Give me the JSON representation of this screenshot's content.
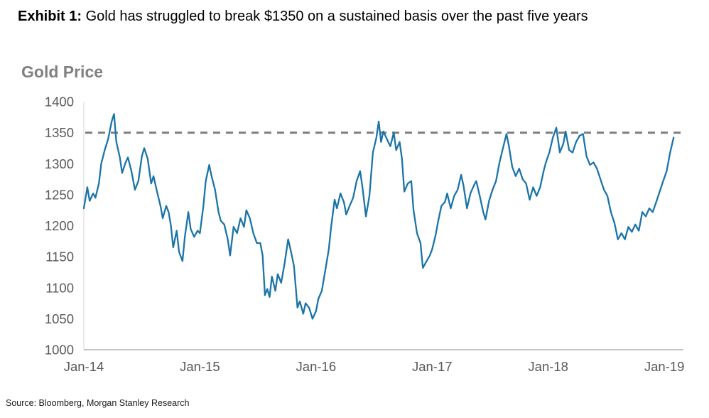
{
  "header": {
    "exhibit_label": "Exhibit 1:",
    "title": " Gold has struggled to break $1350 on a sustained basis over the past five years"
  },
  "footer": {
    "source": "Source: Bloomberg, Morgan Stanley Research"
  },
  "chart_data": {
    "type": "line",
    "title": "Gold Price",
    "xlabel": "",
    "ylabel": "",
    "xlim": [
      0,
      5.14
    ],
    "ylim": [
      1000,
      1400
    ],
    "grid": false,
    "legend": "none",
    "y_ticks": [
      1000,
      1050,
      1100,
      1150,
      1200,
      1250,
      1300,
      1350,
      1400
    ],
    "x_ticks": [
      {
        "label": "Jan-14",
        "t": 0
      },
      {
        "label": "Jan-15",
        "t": 1
      },
      {
        "label": "Jan-16",
        "t": 2
      },
      {
        "label": "Jan-17",
        "t": 3
      },
      {
        "label": "Jan-18",
        "t": 4
      },
      {
        "label": "Jan-19",
        "t": 5
      }
    ],
    "threshold": {
      "value": 1350,
      "style": "dashed",
      "color": "#7f7f7f"
    },
    "style": {
      "line_color": "#1b74a8",
      "axis_color": "#b3b3b3",
      "tick_label_color": "#595959"
    },
    "series": [
      {
        "name": "Gold Price",
        "points": [
          [
            0.0,
            1228
          ],
          [
            0.03,
            1262
          ],
          [
            0.05,
            1240
          ],
          [
            0.08,
            1252
          ],
          [
            0.1,
            1245
          ],
          [
            0.13,
            1268
          ],
          [
            0.15,
            1300
          ],
          [
            0.18,
            1322
          ],
          [
            0.21,
            1340
          ],
          [
            0.24,
            1368
          ],
          [
            0.26,
            1380
          ],
          [
            0.28,
            1335
          ],
          [
            0.31,
            1310
          ],
          [
            0.33,
            1285
          ],
          [
            0.36,
            1302
          ],
          [
            0.38,
            1310
          ],
          [
            0.41,
            1288
          ],
          [
            0.44,
            1258
          ],
          [
            0.47,
            1272
          ],
          [
            0.5,
            1312
          ],
          [
            0.52,
            1325
          ],
          [
            0.55,
            1308
          ],
          [
            0.58,
            1268
          ],
          [
            0.6,
            1280
          ],
          [
            0.63,
            1255
          ],
          [
            0.66,
            1232
          ],
          [
            0.68,
            1212
          ],
          [
            0.71,
            1232
          ],
          [
            0.73,
            1222
          ],
          [
            0.75,
            1200
          ],
          [
            0.77,
            1165
          ],
          [
            0.8,
            1192
          ],
          [
            0.82,
            1158
          ],
          [
            0.85,
            1143
          ],
          [
            0.87,
            1182
          ],
          [
            0.9,
            1222
          ],
          [
            0.92,
            1195
          ],
          [
            0.95,
            1182
          ],
          [
            0.98,
            1192
          ],
          [
            1.0,
            1188
          ],
          [
            1.03,
            1232
          ],
          [
            1.05,
            1272
          ],
          [
            1.08,
            1298
          ],
          [
            1.1,
            1280
          ],
          [
            1.13,
            1258
          ],
          [
            1.16,
            1222
          ],
          [
            1.18,
            1208
          ],
          [
            1.21,
            1202
          ],
          [
            1.24,
            1178
          ],
          [
            1.26,
            1152
          ],
          [
            1.29,
            1198
          ],
          [
            1.32,
            1188
          ],
          [
            1.35,
            1212
          ],
          [
            1.38,
            1198
          ],
          [
            1.4,
            1225
          ],
          [
            1.43,
            1212
          ],
          [
            1.46,
            1188
          ],
          [
            1.49,
            1172
          ],
          [
            1.52,
            1172
          ],
          [
            1.54,
            1152
          ],
          [
            1.56,
            1088
          ],
          [
            1.58,
            1098
          ],
          [
            1.6,
            1085
          ],
          [
            1.62,
            1118
          ],
          [
            1.65,
            1095
          ],
          [
            1.67,
            1122
          ],
          [
            1.7,
            1108
          ],
          [
            1.73,
            1140
          ],
          [
            1.76,
            1178
          ],
          [
            1.78,
            1162
          ],
          [
            1.81,
            1135
          ],
          [
            1.84,
            1068
          ],
          [
            1.86,
            1078
          ],
          [
            1.89,
            1058
          ],
          [
            1.91,
            1075
          ],
          [
            1.94,
            1068
          ],
          [
            1.97,
            1050
          ],
          [
            2.0,
            1062
          ],
          [
            2.02,
            1082
          ],
          [
            2.05,
            1095
          ],
          [
            2.08,
            1128
          ],
          [
            2.11,
            1162
          ],
          [
            2.13,
            1198
          ],
          [
            2.16,
            1242
          ],
          [
            2.18,
            1228
          ],
          [
            2.21,
            1252
          ],
          [
            2.24,
            1238
          ],
          [
            2.26,
            1218
          ],
          [
            2.29,
            1232
          ],
          [
            2.32,
            1245
          ],
          [
            2.35,
            1272
          ],
          [
            2.38,
            1288
          ],
          [
            2.4,
            1262
          ],
          [
            2.43,
            1215
          ],
          [
            2.46,
            1248
          ],
          [
            2.49,
            1318
          ],
          [
            2.52,
            1342
          ],
          [
            2.54,
            1368
          ],
          [
            2.56,
            1335
          ],
          [
            2.58,
            1352
          ],
          [
            2.61,
            1340
          ],
          [
            2.64,
            1328
          ],
          [
            2.67,
            1350
          ],
          [
            2.69,
            1322
          ],
          [
            2.72,
            1335
          ],
          [
            2.74,
            1308
          ],
          [
            2.76,
            1255
          ],
          [
            2.79,
            1268
          ],
          [
            2.82,
            1272
          ],
          [
            2.84,
            1225
          ],
          [
            2.87,
            1188
          ],
          [
            2.9,
            1172
          ],
          [
            2.92,
            1132
          ],
          [
            2.95,
            1142
          ],
          [
            2.98,
            1152
          ],
          [
            3.0,
            1162
          ],
          [
            3.03,
            1185
          ],
          [
            3.05,
            1205
          ],
          [
            3.08,
            1232
          ],
          [
            3.11,
            1238
          ],
          [
            3.13,
            1252
          ],
          [
            3.16,
            1228
          ],
          [
            3.19,
            1248
          ],
          [
            3.22,
            1258
          ],
          [
            3.25,
            1282
          ],
          [
            3.27,
            1265
          ],
          [
            3.3,
            1228
          ],
          [
            3.33,
            1252
          ],
          [
            3.36,
            1265
          ],
          [
            3.38,
            1272
          ],
          [
            3.41,
            1248
          ],
          [
            3.44,
            1222
          ],
          [
            3.46,
            1210
          ],
          [
            3.49,
            1240
          ],
          [
            3.52,
            1258
          ],
          [
            3.55,
            1272
          ],
          [
            3.58,
            1302
          ],
          [
            3.61,
            1325
          ],
          [
            3.64,
            1348
          ],
          [
            3.66,
            1330
          ],
          [
            3.69,
            1295
          ],
          [
            3.72,
            1280
          ],
          [
            3.75,
            1292
          ],
          [
            3.78,
            1275
          ],
          [
            3.81,
            1268
          ],
          [
            3.84,
            1242
          ],
          [
            3.87,
            1262
          ],
          [
            3.9,
            1248
          ],
          [
            3.93,
            1262
          ],
          [
            3.96,
            1288
          ],
          [
            3.98,
            1302
          ],
          [
            4.01,
            1318
          ],
          [
            4.04,
            1342
          ],
          [
            4.07,
            1358
          ],
          [
            4.1,
            1318
          ],
          [
            4.13,
            1332
          ],
          [
            4.15,
            1352
          ],
          [
            4.18,
            1322
          ],
          [
            4.21,
            1318
          ],
          [
            4.24,
            1335
          ],
          [
            4.27,
            1345
          ],
          [
            4.3,
            1348
          ],
          [
            4.33,
            1312
          ],
          [
            4.36,
            1298
          ],
          [
            4.39,
            1302
          ],
          [
            4.42,
            1292
          ],
          [
            4.45,
            1275
          ],
          [
            4.48,
            1258
          ],
          [
            4.51,
            1248
          ],
          [
            4.54,
            1222
          ],
          [
            4.57,
            1205
          ],
          [
            4.6,
            1178
          ],
          [
            4.63,
            1188
          ],
          [
            4.66,
            1178
          ],
          [
            4.69,
            1198
          ],
          [
            4.72,
            1190
          ],
          [
            4.75,
            1202
          ],
          [
            4.78,
            1192
          ],
          [
            4.81,
            1222
          ],
          [
            4.84,
            1215
          ],
          [
            4.87,
            1228
          ],
          [
            4.9,
            1222
          ],
          [
            4.93,
            1238
          ],
          [
            4.96,
            1255
          ],
          [
            4.99,
            1272
          ],
          [
            5.02,
            1288
          ],
          [
            5.05,
            1318
          ],
          [
            5.08,
            1342
          ]
        ]
      }
    ]
  }
}
